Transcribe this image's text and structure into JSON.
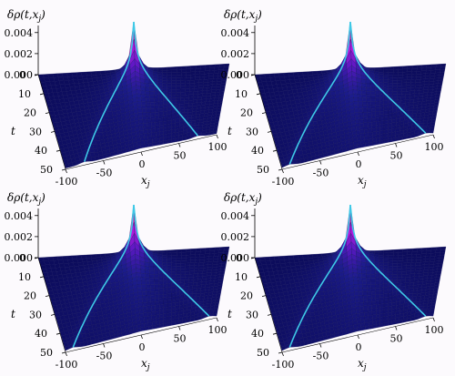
{
  "figure": {
    "bg_color": "#fcfafd",
    "panels": [
      {
        "id": "top-left",
        "z_label": "δρ(t,xj)",
        "t_label": "t",
        "x_label": "xj"
      },
      {
        "id": "top-right",
        "z_label": "δρ(t,xj)",
        "t_label": "t",
        "x_label": "xj"
      },
      {
        "id": "bottom-left",
        "z_label": "δρ(t,xj)",
        "t_label": "t",
        "x_label": "xj"
      },
      {
        "id": "bottom-right",
        "z_label": "δρ(t,xj)",
        "t_label": "t",
        "x_label": "xj"
      }
    ]
  },
  "chart_data": [
    {
      "type": "surface",
      "title": "",
      "z_label": "δρ(t,xj)",
      "y_label": "t",
      "x_label": "xj",
      "z_ticks": [
        "0.000",
        "0.002",
        "0.004"
      ],
      "t_ticks": [
        "0",
        "10",
        "20",
        "30",
        "40",
        "50"
      ],
      "x_ticks": [
        "-100",
        "-50",
        "0",
        "50",
        "100"
      ],
      "zlim": [
        0,
        0.0045
      ],
      "tlim": [
        0,
        50
      ],
      "xlim": [
        -100,
        100
      ],
      "peak": {
        "t": 0,
        "x": 0,
        "value": 0.0045
      },
      "front_speed": 1.5,
      "front_curve_color": "#3ec8e6",
      "colormap": [
        "#0c0c5c",
        "#1c1c8c",
        "#5b18c4",
        "#b41cde",
        "#f25aa0",
        "#fca25a",
        "#fff048"
      ]
    },
    {
      "type": "surface",
      "title": "",
      "z_label": "δρ(t,xj)",
      "y_label": "t",
      "x_label": "xj",
      "z_ticks": [
        "0.000",
        "0.002",
        "0.004"
      ],
      "t_ticks": [
        "0",
        "10",
        "20",
        "30",
        "40",
        "50"
      ],
      "x_ticks": [
        "-100",
        "-50",
        "0",
        "50",
        "100"
      ],
      "zlim": [
        0,
        0.0045
      ],
      "tlim": [
        0,
        50
      ],
      "xlim": [
        -100,
        100
      ],
      "peak": {
        "t": 0,
        "x": 0,
        "value": 0.0045
      },
      "front_speed": 1.8,
      "front_curve_color": "#3ec8e6",
      "colormap": [
        "#0c0c5c",
        "#1c1c8c",
        "#5b18c4",
        "#b41cde",
        "#f25aa0",
        "#fca25a",
        "#fff048"
      ]
    },
    {
      "type": "surface",
      "title": "",
      "z_label": "δρ(t,xj)",
      "y_label": "t",
      "x_label": "xj",
      "z_ticks": [
        "0.000",
        "0.002",
        "0.004"
      ],
      "t_ticks": [
        "0",
        "10",
        "20",
        "30",
        "40",
        "50"
      ],
      "x_ticks": [
        "-100",
        "-50",
        "0",
        "50",
        "100"
      ],
      "zlim": [
        0,
        0.0045
      ],
      "tlim": [
        0,
        50
      ],
      "xlim": [
        -100,
        100
      ],
      "peak": {
        "t": 0,
        "x": 0,
        "value": 0.0045
      },
      "front_speed": 1.8,
      "front_curve_color": "#3ec8e6",
      "colormap": [
        "#0c0c5c",
        "#1c1c8c",
        "#5b18c4",
        "#b41cde",
        "#f25aa0",
        "#fca25a",
        "#fff048"
      ]
    },
    {
      "type": "surface",
      "title": "",
      "z_label": "δρ(t,xj)",
      "y_label": "t",
      "x_label": "xj",
      "z_ticks": [
        "0.000",
        "0.002",
        "0.004"
      ],
      "t_ticks": [
        "0",
        "10",
        "20",
        "30",
        "40",
        "50"
      ],
      "x_ticks": [
        "-100",
        "-50",
        "0",
        "50",
        "100"
      ],
      "zlim": [
        0,
        0.0045
      ],
      "tlim": [
        0,
        50
      ],
      "xlim": [
        -100,
        100
      ],
      "peak": {
        "t": 0,
        "x": 0,
        "value": 0.0045
      },
      "front_speed": 1.8,
      "front_curve_color": "#3ec8e6",
      "colormap": [
        "#0c0c5c",
        "#1c1c8c",
        "#5b18c4",
        "#b41cde",
        "#f25aa0",
        "#fca25a",
        "#fff048"
      ]
    }
  ]
}
